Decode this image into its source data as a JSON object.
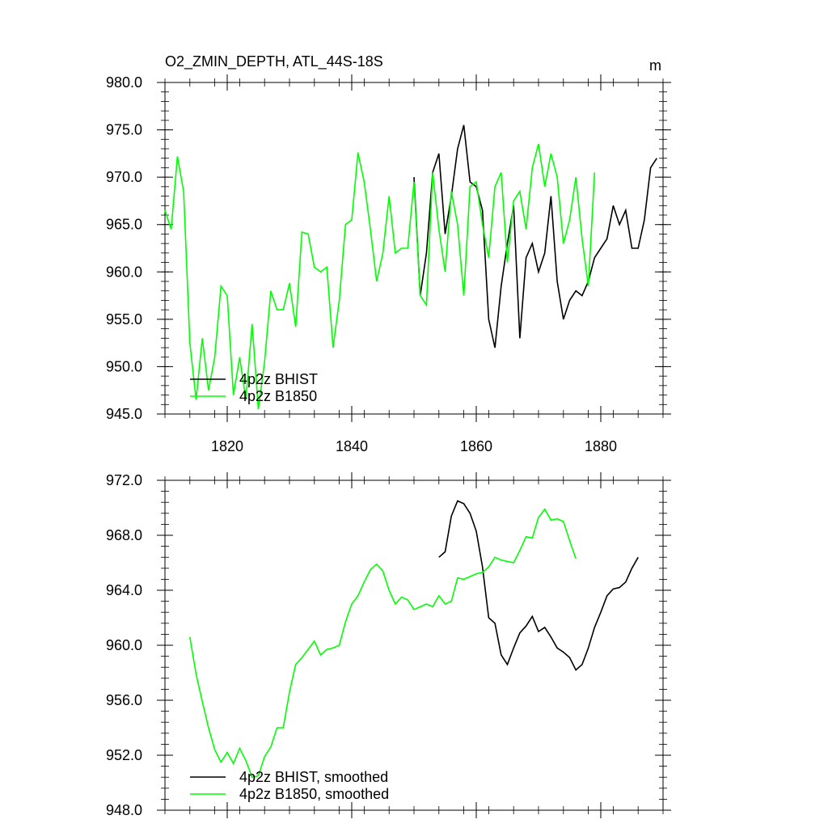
{
  "chart_data": [
    {
      "type": "line",
      "title": "O2_ZMIN_DEPTH, ATL_44S-18S",
      "units": "m",
      "xlabel": "",
      "ylabel": "",
      "xlim": [
        1810,
        1890
      ],
      "ylim": [
        945,
        980
      ],
      "x_ticks": [
        1820,
        1840,
        1860,
        1880
      ],
      "y_ticks": [
        945.0,
        950.0,
        955.0,
        960.0,
        965.0,
        970.0,
        975.0,
        980.0
      ],
      "y_tick_labels": [
        "945.0",
        "950.0",
        "955.0",
        "960.0",
        "965.0",
        "970.0",
        "975.0",
        "980.0"
      ],
      "legend_position": "bottom-left",
      "series": [
        {
          "name": "4p2z BHIST",
          "color": "#000000",
          "x": [
            1850,
            1851,
            1852,
            1853,
            1854,
            1855,
            1856,
            1857,
            1858,
            1859,
            1860,
            1861,
            1862,
            1863,
            1864,
            1865,
            1866,
            1867,
            1868,
            1869,
            1870,
            1871,
            1872,
            1873,
            1874,
            1875,
            1876,
            1877,
            1878,
            1879,
            1880,
            1881,
            1882,
            1883,
            1884,
            1885,
            1886,
            1887,
            1888,
            1889
          ],
          "values": [
            970.0,
            957.5,
            962.0,
            970.5,
            972.5,
            964.0,
            968.0,
            973.0,
            975.5,
            969.5,
            969.0,
            966.5,
            955.0,
            952.0,
            958.5,
            963.0,
            967.0,
            953.0,
            961.5,
            963.0,
            960.0,
            962.0,
            968.0,
            959.0,
            955.0,
            957.0,
            958.0,
            957.5,
            959.0,
            961.5,
            962.5,
            963.5,
            967.0,
            965.0,
            966.5,
            962.5,
            962.5,
            965.5,
            971.0,
            972.0
          ]
        },
        {
          "name": "4p2z B1850",
          "color": "#00ff00",
          "x": [
            1810,
            1811,
            1812,
            1813,
            1814,
            1815,
            1816,
            1817,
            1818,
            1819,
            1820,
            1821,
            1822,
            1823,
            1824,
            1825,
            1826,
            1827,
            1828,
            1829,
            1830,
            1831,
            1832,
            1833,
            1834,
            1835,
            1836,
            1837,
            1838,
            1839,
            1840,
            1841,
            1842,
            1843,
            1844,
            1845,
            1846,
            1847,
            1848,
            1849,
            1850,
            1851,
            1852,
            1853,
            1854,
            1855,
            1856,
            1857,
            1858,
            1859,
            1860,
            1861,
            1862,
            1863,
            1864,
            1865,
            1866,
            1867,
            1868,
            1869,
            1870,
            1871,
            1872,
            1873,
            1874,
            1875,
            1876,
            1877,
            1878,
            1879
          ],
          "values": [
            966.5,
            964.5,
            972.2,
            968.5,
            952.5,
            946.5,
            953.0,
            947.5,
            951.0,
            958.5,
            957.5,
            947.0,
            951.0,
            946.5,
            954.5,
            945.5,
            950.5,
            958.0,
            956.0,
            956.0,
            958.8,
            954.2,
            964.2,
            964.0,
            960.5,
            960.0,
            960.5,
            952.0,
            957.0,
            965.0,
            965.5,
            972.6,
            969.5,
            964.5,
            959.0,
            962.0,
            968.0,
            962.0,
            962.5,
            962.5,
            969.5,
            957.5,
            956.5,
            970.5,
            964.5,
            960.0,
            968.5,
            965.0,
            957.5,
            969.0,
            969.5,
            965.0,
            961.5,
            969.0,
            970.5,
            961.0,
            967.5,
            968.5,
            964.5,
            971.0,
            973.5,
            969.0,
            972.5,
            970.0,
            963.0,
            965.5,
            970.0,
            963.5,
            958.5,
            970.5
          ]
        }
      ]
    },
    {
      "type": "line",
      "title": "",
      "xlabel": "",
      "ylabel": "",
      "xlim": [
        1810,
        1890
      ],
      "ylim": [
        948,
        972
      ],
      "x_ticks": [
        1820,
        1840,
        1860,
        1880
      ],
      "y_ticks": [
        948.0,
        952.0,
        956.0,
        960.0,
        964.0,
        968.0,
        972.0
      ],
      "y_tick_labels": [
        "948.0",
        "952.0",
        "956.0",
        "960.0",
        "964.0",
        "968.0",
        "972.0"
      ],
      "legend_position": "bottom-left",
      "series": [
        {
          "name": "4p2z BHIST, smoothed",
          "color": "#000000",
          "x": [
            1854,
            1855,
            1856,
            1857,
            1858,
            1859,
            1860,
            1861,
            1862,
            1863,
            1864,
            1865,
            1866,
            1867,
            1868,
            1869,
            1870,
            1871,
            1872,
            1873,
            1874,
            1875,
            1876,
            1877,
            1878,
            1879,
            1880,
            1881,
            1882,
            1883,
            1884,
            1885,
            1886
          ],
          "values": [
            966.4,
            966.8,
            969.4,
            970.5,
            970.3,
            969.6,
            968.3,
            965.7,
            962.0,
            961.6,
            959.3,
            958.6,
            959.8,
            960.9,
            961.4,
            962.1,
            961.0,
            961.3,
            960.6,
            959.8,
            959.5,
            959.1,
            958.2,
            958.6,
            959.8,
            961.3,
            962.4,
            963.6,
            964.1,
            964.2,
            964.6,
            965.6,
            966.4
          ]
        },
        {
          "name": "4p2z B1850, smoothed",
          "color": "#00ff00",
          "x": [
            1814,
            1815,
            1816,
            1817,
            1818,
            1819,
            1820,
            1821,
            1822,
            1823,
            1824,
            1825,
            1826,
            1827,
            1828,
            1829,
            1830,
            1831,
            1832,
            1833,
            1834,
            1835,
            1836,
            1837,
            1838,
            1839,
            1840,
            1841,
            1842,
            1843,
            1844,
            1845,
            1846,
            1847,
            1848,
            1849,
            1850,
            1851,
            1852,
            1853,
            1854,
            1855,
            1856,
            1857,
            1858,
            1859,
            1860,
            1861,
            1862,
            1863,
            1864,
            1865,
            1866,
            1867,
            1868,
            1869,
            1870,
            1871,
            1872,
            1873,
            1874,
            1875,
            1876
          ],
          "values": [
            960.6,
            957.9,
            955.9,
            954.0,
            952.4,
            951.5,
            952.2,
            951.4,
            952.5,
            951.6,
            950.4,
            950.5,
            951.9,
            952.6,
            954.0,
            954.0,
            956.6,
            958.6,
            959.1,
            959.7,
            960.3,
            959.3,
            959.7,
            959.8,
            960.0,
            961.7,
            963.0,
            963.6,
            964.6,
            965.5,
            965.9,
            965.4,
            964.0,
            963.0,
            963.5,
            963.3,
            962.6,
            962.8,
            963.0,
            962.8,
            963.6,
            963.0,
            963.2,
            964.9,
            964.8,
            965.0,
            965.2,
            965.3,
            965.7,
            966.4,
            966.2,
            966.1,
            966.0,
            966.9,
            967.9,
            967.8,
            969.3,
            969.9,
            969.1,
            969.2,
            969.0,
            967.6,
            966.3
          ]
        }
      ]
    }
  ]
}
